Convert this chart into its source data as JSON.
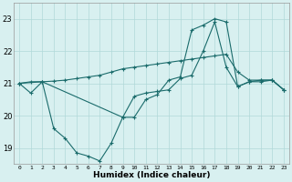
{
  "xlabel": "Humidex (Indice chaleur)",
  "xlim": [
    -0.5,
    23.5
  ],
  "ylim": [
    18.5,
    23.5
  ],
  "yticks": [
    19,
    20,
    21,
    22,
    23
  ],
  "xticks": [
    0,
    1,
    2,
    3,
    4,
    5,
    6,
    7,
    8,
    9,
    10,
    11,
    12,
    13,
    14,
    15,
    16,
    17,
    18,
    19,
    20,
    21,
    22,
    23
  ],
  "line_color": "#1a6b6b",
  "bg_color": "#d8f0f0",
  "grid_color": "#b0d8d8",
  "line1_x": [
    0,
    1,
    2,
    3,
    4,
    5,
    6,
    7,
    8,
    9,
    10,
    11,
    12,
    13,
    14,
    15,
    16,
    17,
    18,
    19,
    20,
    21,
    22,
    23
  ],
  "line1_y": [
    21.0,
    21.05,
    21.05,
    21.07,
    21.1,
    21.15,
    21.2,
    21.25,
    21.35,
    21.45,
    21.5,
    21.55,
    21.6,
    21.65,
    21.7,
    21.75,
    21.8,
    21.85,
    21.9,
    21.35,
    21.1,
    21.1,
    21.1,
    20.8
  ],
  "line2_x": [
    0,
    1,
    2,
    3,
    4,
    5,
    6,
    7,
    8,
    9,
    10,
    11,
    12,
    13,
    14,
    15,
    16,
    17,
    18,
    19,
    20,
    21,
    22,
    23
  ],
  "line2_y": [
    21.0,
    20.7,
    21.05,
    19.6,
    19.3,
    18.85,
    18.75,
    18.6,
    19.15,
    19.95,
    19.95,
    20.5,
    20.65,
    21.1,
    21.2,
    22.65,
    22.8,
    23.0,
    22.9,
    20.9,
    21.05,
    21.1,
    21.1,
    20.8
  ],
  "line3_x": [
    0,
    2,
    9,
    10,
    11,
    12,
    13,
    14,
    15,
    16,
    17,
    18,
    19,
    20,
    21,
    22,
    23
  ],
  "line3_y": [
    21.0,
    21.05,
    19.95,
    20.6,
    20.7,
    20.75,
    20.8,
    21.15,
    21.25,
    22.0,
    22.9,
    21.5,
    20.9,
    21.05,
    21.05,
    21.1,
    20.8
  ]
}
